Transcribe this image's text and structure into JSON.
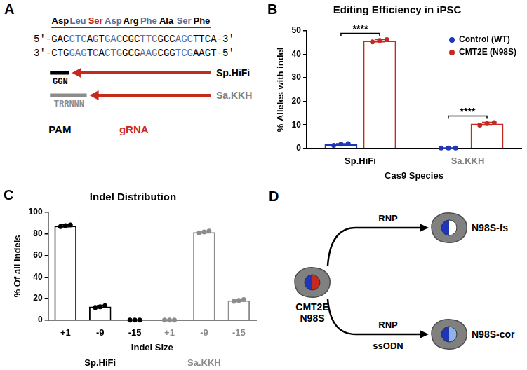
{
  "figure": {
    "panel_labels": [
      "A",
      "B",
      "C",
      "D"
    ]
  },
  "diagram_a": {
    "amino_acids": [
      {
        "text": "Asp",
        "color": "#000000"
      },
      {
        "text": "Leu",
        "color": "#5a6d99"
      },
      {
        "text": "Ser",
        "color": "#c62a1f"
      },
      {
        "text": "Asp",
        "color": "#5a6d99"
      },
      {
        "text": "Arg",
        "color": "#000000"
      },
      {
        "text": "Phe",
        "color": "#5a6d99"
      },
      {
        "text": "Ala",
        "color": "#000000"
      },
      {
        "text": "Ser",
        "color": "#5a6d99"
      },
      {
        "text": "Phe",
        "color": "#000000"
      }
    ],
    "strands": [
      [
        {
          "text": "5'-",
          "color": "#000000"
        },
        {
          "text": "GAC",
          "color": "#000000"
        },
        {
          "text": "CTC",
          "color": "#5a6d99"
        },
        {
          "text": "A",
          "color": "#000000"
        },
        {
          "text": "G",
          "color": "#c62a1f"
        },
        {
          "text": "T",
          "color": "#000000"
        },
        {
          "text": "GAC",
          "color": "#5a6d99"
        },
        {
          "text": "CGC",
          "color": "#000000"
        },
        {
          "text": "TTC",
          "color": "#5a6d99"
        },
        {
          "text": "GCC",
          "color": "#000000"
        },
        {
          "text": "AGC",
          "color": "#5a6d99"
        },
        {
          "text": "TTCA",
          "color": "#000000"
        },
        {
          "text": "-3'",
          "color": "#000000"
        }
      ],
      [
        {
          "text": "3'-",
          "color": "#000000"
        },
        {
          "text": "CTG",
          "color": "#000000"
        },
        {
          "text": "GAG",
          "color": "#5a6d99"
        },
        {
          "text": "T",
          "color": "#000000"
        },
        {
          "text": "C",
          "color": "#c62a1f"
        },
        {
          "text": "A",
          "color": "#000000"
        },
        {
          "text": "CTG",
          "color": "#5a6d99"
        },
        {
          "text": "GCG",
          "color": "#000000"
        },
        {
          "text": "AAG",
          "color": "#5a6d99"
        },
        {
          "text": "CGG",
          "color": "#000000"
        },
        {
          "text": "TCG",
          "color": "#5a6d99"
        },
        {
          "text": "AAGT",
          "color": "#000000"
        },
        {
          "text": "-5'",
          "color": "#000000"
        }
      ]
    ],
    "guides": [
      {
        "name": "Sp.HiFi",
        "color": "#000000",
        "pam": "GGN",
        "pam_color": "#000000"
      },
      {
        "name": "Sa.KKH",
        "color": "#808080",
        "pam": "TRRNNN",
        "pam_color": "#8c8c8c"
      }
    ],
    "pam_label": {
      "text": "PAM",
      "color": "#000000"
    },
    "grna_label": {
      "text": "gRNA",
      "color": "#c62a1f"
    }
  },
  "chart_data": [
    {
      "type": "bar",
      "title": "Editing Efficiency in iPSC",
      "x_label": "Cas9 Species",
      "y_label": "% Alleles with indel",
      "categories": [
        "Sp.HiFi",
        "Sa.KKH"
      ],
      "series": [
        {
          "name": "Control (WT)",
          "color": "#2036b8",
          "values": [
            1.7,
            0.2
          ],
          "errors": [
            0.3,
            0.05
          ],
          "points": [
            [
              1.3,
              1.8,
              2.0
            ],
            [
              0.2,
              0.2,
              0.2
            ]
          ]
        },
        {
          "name": "CMT2E (N98S)",
          "color": "#c62a1f",
          "values": [
            45.8,
            10.5
          ],
          "errors": [
            0.5,
            0.6
          ],
          "points": [
            [
              45.3,
              45.9,
              46.3
            ],
            [
              9.9,
              10.6,
              11.0
            ]
          ]
        }
      ],
      "ylim": [
        0,
        50
      ],
      "yticks": [
        0,
        10,
        20,
        30,
        40,
        50
      ],
      "grid": false,
      "legend": "upper right",
      "significance": [
        {
          "category": "Sp.HiFi",
          "text": "****"
        },
        {
          "category": "Sa.KKH",
          "text": "****"
        }
      ]
    },
    {
      "type": "bar",
      "title": "Indel Distribution",
      "x_label": "Indel Size",
      "y_label": "% Of all indels",
      "groups": [
        {
          "name": "Sp.HiFi",
          "color": "#000000",
          "categories": [
            "+1",
            "-9",
            "-15"
          ],
          "values": [
            87.5,
            12.5,
            0
          ],
          "errors": [
            1.0,
            1.0,
            0
          ],
          "points": [
            [
              86.8,
              87.6,
              88.3
            ],
            [
              11.7,
              12.4,
              13.4
            ],
            [
              0,
              0,
              0
            ]
          ]
        },
        {
          "name": "Sa.KKH",
          "color": "#8c8c8c",
          "categories": [
            "+1",
            "-9",
            "-15"
          ],
          "values": [
            0,
            81.7,
            18.3
          ],
          "errors": [
            0,
            0.8,
            0.8
          ],
          "points": [
            [
              0,
              0,
              0
            ],
            [
              81.0,
              81.8,
              82.6
            ],
            [
              17.4,
              18.2,
              19.0
            ]
          ]
        }
      ],
      "ylim": [
        0,
        100
      ],
      "yticks": [
        0,
        20,
        40,
        60,
        80,
        100
      ],
      "grid": false
    }
  ],
  "diagram_d": {
    "source": {
      "lines": [
        "CMT2E",
        "N98S"
      ],
      "color": "#c62a1f"
    },
    "outcomes": [
      {
        "reagents": [
          "RNP"
        ],
        "label": "N98S-fs",
        "color": "#ffffff"
      },
      {
        "reagents": [
          "RNP",
          "ssODN"
        ],
        "label": "N98S-cor",
        "color": "#8fb3e6"
      }
    ]
  }
}
